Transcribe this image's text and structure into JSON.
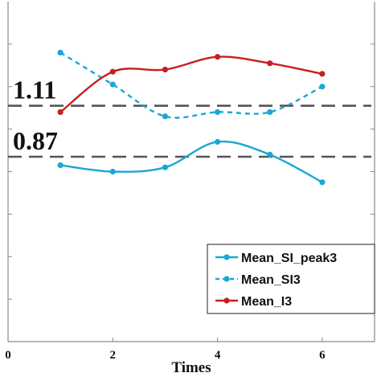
{
  "chart_data": {
    "type": "line",
    "xlabel": "Times",
    "ylabel": "",
    "xlim": [
      0,
      7
    ],
    "ylim": [
      0,
      1.6
    ],
    "x_ticks": [
      0,
      2,
      4,
      6
    ],
    "y_ticks": [
      0.2,
      0.4,
      0.6,
      0.8,
      1.0,
      1.2,
      1.4
    ],
    "grid": false,
    "legend_position": "bottom-right",
    "reference_lines": [
      {
        "value": 1.11,
        "label": "1.11"
      },
      {
        "value": 0.87,
        "label": "0.87"
      }
    ],
    "series": [
      {
        "name": "Mean_SI_peak3",
        "color": "#1aa7d4",
        "dashed": false,
        "x": [
          1,
          2,
          3,
          4,
          5,
          6
        ],
        "y": [
          0.83,
          0.8,
          0.82,
          0.94,
          0.88,
          0.75
        ]
      },
      {
        "name": "Mean_SI3",
        "color": "#1aa7d4",
        "dashed": true,
        "x": [
          1,
          2,
          3,
          4,
          5,
          6
        ],
        "y": [
          1.36,
          1.21,
          1.06,
          1.08,
          1.08,
          1.2
        ]
      },
      {
        "name": "Mean_I3",
        "color": "#c81e1e",
        "dashed": false,
        "x": [
          1,
          2,
          3,
          4,
          5,
          6
        ],
        "y": [
          1.08,
          1.27,
          1.28,
          1.34,
          1.31,
          1.26
        ]
      }
    ]
  }
}
